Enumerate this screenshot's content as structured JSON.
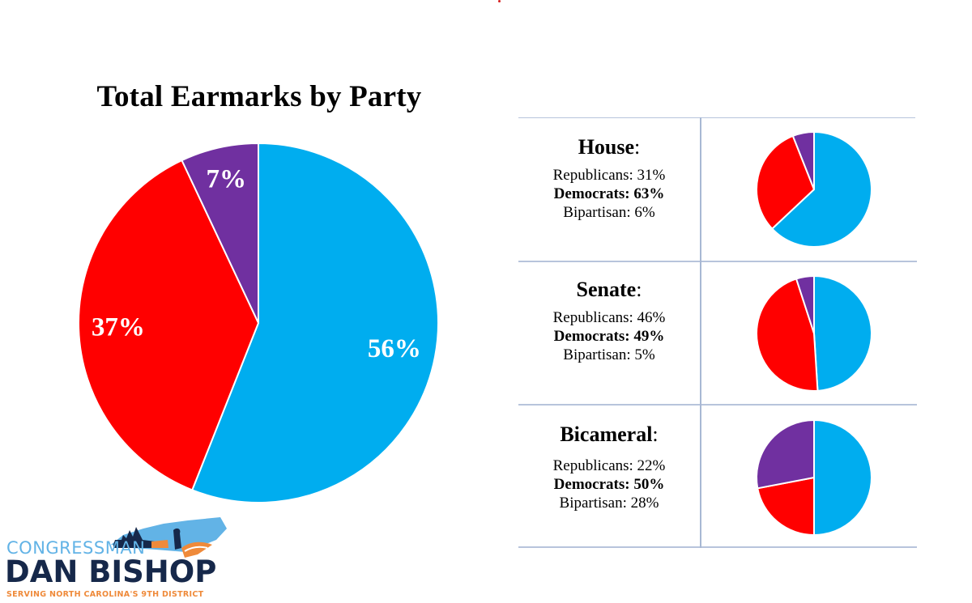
{
  "colors": {
    "democrats": "#00adef",
    "republicans": "#ff0000",
    "bipartisan": "#7030a0",
    "grid_line": "#b7c4dc",
    "logo_light_blue": "#62b3e6",
    "logo_navy": "#16284a",
    "logo_orange": "#ef8a3a"
  },
  "chart_data": [
    {
      "type": "pie",
      "title": "Total Earmarks by Party",
      "slices": [
        {
          "name": "Democrats",
          "value": 56,
          "label": "56%",
          "color": "#00adef"
        },
        {
          "name": "Republicans",
          "value": 37,
          "label": "37%",
          "color": "#ff0000"
        },
        {
          "name": "Bipartisan",
          "value": 7,
          "label": "7%",
          "color": "#7030a0"
        }
      ],
      "start": "12 o'clock",
      "direction": "clockwise"
    },
    {
      "type": "pie",
      "title": "House",
      "slices": [
        {
          "name": "Democrats",
          "value": 63,
          "color": "#00adef"
        },
        {
          "name": "Republicans",
          "value": 31,
          "color": "#ff0000"
        },
        {
          "name": "Bipartisan",
          "value": 6,
          "color": "#7030a0"
        }
      ],
      "start": "12 o'clock",
      "direction": "clockwise"
    },
    {
      "type": "pie",
      "title": "Senate",
      "slices": [
        {
          "name": "Democrats",
          "value": 49,
          "color": "#00adef"
        },
        {
          "name": "Republicans",
          "value": 46,
          "color": "#ff0000"
        },
        {
          "name": "Bipartisan",
          "value": 5,
          "color": "#7030a0"
        }
      ],
      "start": "12 o'clock",
      "direction": "clockwise"
    },
    {
      "type": "pie",
      "title": "Bicameral",
      "slices": [
        {
          "name": "Democrats",
          "value": 50,
          "color": "#00adef"
        },
        {
          "name": "Republicans",
          "value": 22,
          "color": "#ff0000"
        },
        {
          "name": "Bipartisan",
          "value": 28,
          "color": "#7030a0"
        }
      ],
      "start": "12 o'clock",
      "direction": "clockwise"
    }
  ],
  "main": {
    "title": "Total Earmarks by Party"
  },
  "breakdown": [
    {
      "title": "House",
      "colon": ":",
      "lines": [
        {
          "text": "Republicans: 31%",
          "bold": false
        },
        {
          "text": "Democrats: 63%",
          "bold": true
        },
        {
          "text": "Bipartisan: 6%",
          "bold": false
        }
      ]
    },
    {
      "title": "Senate",
      "colon": ":",
      "lines": [
        {
          "text": "Republicans: 46%",
          "bold": false
        },
        {
          "text": "Democrats: 49%",
          "bold": true
        },
        {
          "text": "Bipartisan: 5%",
          "bold": false
        }
      ]
    },
    {
      "title": "Bicameral",
      "colon": ":",
      "lines": [
        {
          "text": "Republicans: 22%",
          "bold": false
        },
        {
          "text": "Democrats: 50%",
          "bold": true
        },
        {
          "text": "Bipartisan: 28%",
          "bold": false
        }
      ]
    }
  ],
  "logo": {
    "line1": "CONGRESSMAN",
    "line2": "DAN BISHOP",
    "line3": "SERVING NORTH CAROLINA'S 9TH DISTRICT",
    "icon": "north-carolina-map-icon"
  }
}
